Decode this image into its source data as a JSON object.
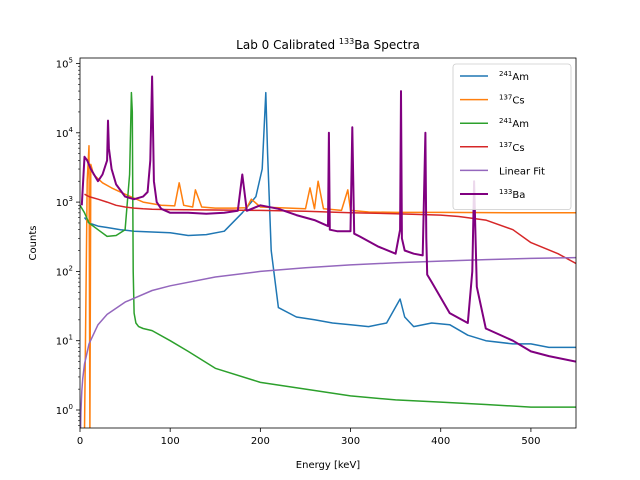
{
  "chart_data": {
    "type": "line",
    "title": "Lab 0 Calibrated ¹³³Ba Spectra",
    "xlabel": "Energy [keV]",
    "ylabel": "Counts",
    "xlim": [
      0,
      550
    ],
    "ylim": [
      0.55,
      120000
    ],
    "yscale": "log",
    "grid": false,
    "legend_position": "top-right",
    "x_ticks": [
      0,
      100,
      200,
      300,
      400,
      500
    ],
    "y_ticks": [
      {
        "value": 1,
        "base": "10",
        "exp": "0"
      },
      {
        "value": 10,
        "base": "10",
        "exp": "1"
      },
      {
        "value": 100,
        "base": "10",
        "exp": "2"
      },
      {
        "value": 1000,
        "base": "10",
        "exp": "3"
      },
      {
        "value": 10000,
        "base": "10",
        "exp": "4"
      },
      {
        "value": 100000,
        "base": "10",
        "exp": "5"
      }
    ],
    "series": [
      {
        "name": "241Am",
        "label_mass": "241",
        "label_elem": "Am",
        "color": "#1f77b4",
        "x": [
          5,
          10,
          20,
          30,
          45,
          60,
          80,
          100,
          120,
          140,
          160,
          180,
          195,
          202,
          206,
          208,
          212,
          220,
          240,
          260,
          280,
          300,
          320,
          340,
          355,
          360,
          370,
          390,
          410,
          430,
          450,
          480,
          500,
          520,
          550
        ],
        "y": [
          600,
          500,
          450,
          430,
          400,
          380,
          370,
          360,
          330,
          340,
          380,
          700,
          1200,
          3000,
          38000,
          5000,
          200,
          30,
          22,
          20,
          18,
          17,
          16,
          18,
          40,
          22,
          16,
          18,
          17,
          12,
          10,
          9,
          9,
          8,
          8
        ]
      },
      {
        "name": "137Cs",
        "label_mass": "137",
        "label_elem": "Cs",
        "color": "#ff7f0e",
        "x": [
          5,
          8,
          10,
          11,
          12,
          15,
          25,
          35,
          50,
          70,
          90,
          105,
          110,
          115,
          125,
          128,
          135,
          150,
          170,
          185,
          190,
          200,
          250,
          255,
          260,
          264,
          270,
          290,
          297,
          300,
          320,
          350,
          400,
          450,
          500,
          550
        ],
        "y": [
          0.5,
          2000,
          6500,
          0.5,
          3500,
          2500,
          1900,
          1600,
          1300,
          1000,
          900,
          880,
          1900,
          900,
          850,
          1500,
          850,
          820,
          820,
          830,
          1100,
          850,
          800,
          1600,
          800,
          2000,
          800,
          760,
          1500,
          760,
          720,
          710,
          710,
          705,
          700,
          700
        ]
      },
      {
        "name": "241Am",
        "label_mass": "241",
        "label_elem": "Am",
        "color": "#2ca02c",
        "x": [
          0,
          5,
          10,
          20,
          30,
          40,
          50,
          55,
          57,
          58,
          59,
          60,
          62,
          65,
          70,
          80,
          100,
          120,
          150,
          200,
          250,
          300,
          350,
          400,
          450,
          500,
          550
        ],
        "y": [
          900,
          700,
          500,
          400,
          320,
          330,
          400,
          2500,
          38000,
          20000,
          100,
          25,
          18,
          16,
          15,
          14,
          10,
          7,
          4,
          2.5,
          2,
          1.6,
          1.4,
          1.3,
          1.2,
          1.1,
          1.1
        ]
      },
      {
        "name": "137Cs",
        "label_mass": "137",
        "label_elem": "Cs",
        "color": "#d62728",
        "x": [
          5,
          10,
          20,
          30,
          40,
          50,
          60,
          70,
          80,
          100,
          150,
          200,
          250,
          300,
          350,
          400,
          420,
          450,
          480,
          500,
          530,
          550
        ],
        "y": [
          1300,
          1200,
          1100,
          1000,
          900,
          850,
          820,
          800,
          790,
          780,
          770,
          760,
          740,
          700,
          680,
          650,
          620,
          550,
          400,
          260,
          180,
          130
        ]
      },
      {
        "name": "Linear Fit",
        "label_mass": "",
        "label_elem": "Linear Fit",
        "color": "#9467bd",
        "x": [
          0.3,
          0.5,
          1,
          2,
          3,
          5,
          10,
          20,
          30,
          50,
          80,
          100,
          150,
          200,
          250,
          300,
          350,
          400,
          450,
          500,
          550
        ],
        "y": [
          0.28,
          0.47,
          0.93,
          1.87,
          2.8,
          4.6,
          9,
          17,
          24,
          36,
          53,
          62,
          83,
          100,
          113,
          124,
          133,
          141,
          148,
          154,
          158
        ]
      },
      {
        "name": "133Ba",
        "label_mass": "133",
        "label_elem": "Ba",
        "color": "#800080",
        "x": [
          2,
          5,
          8,
          12,
          20,
          25,
          30,
          31,
          32,
          35,
          40,
          50,
          60,
          70,
          75,
          78,
          80,
          81,
          82,
          85,
          90,
          100,
          120,
          140,
          160,
          175,
          180,
          185,
          200,
          220,
          240,
          260,
          275,
          276,
          277,
          285,
          300,
          302,
          304,
          310,
          330,
          350,
          355,
          356,
          357,
          360,
          370,
          380,
          383,
          384,
          385,
          390,
          410,
          430,
          435,
          437,
          440,
          450,
          480,
          500,
          520,
          550
        ],
        "y": [
          900,
          4500,
          4000,
          3000,
          2000,
          2500,
          4000,
          15000,
          6000,
          3000,
          1800,
          1200,
          1100,
          1200,
          1400,
          4000,
          65000,
          12000,
          2000,
          1000,
          800,
          700,
          700,
          680,
          700,
          750,
          2500,
          750,
          900,
          800,
          650,
          550,
          450,
          10000,
          400,
          380,
          380,
          12000,
          350,
          320,
          230,
          180,
          400,
          40000,
          300,
          200,
          180,
          170,
          10000,
          300,
          90,
          70,
          25,
          18,
          100,
          2000,
          60,
          15,
          10,
          7,
          6,
          5
        ]
      }
    ]
  }
}
